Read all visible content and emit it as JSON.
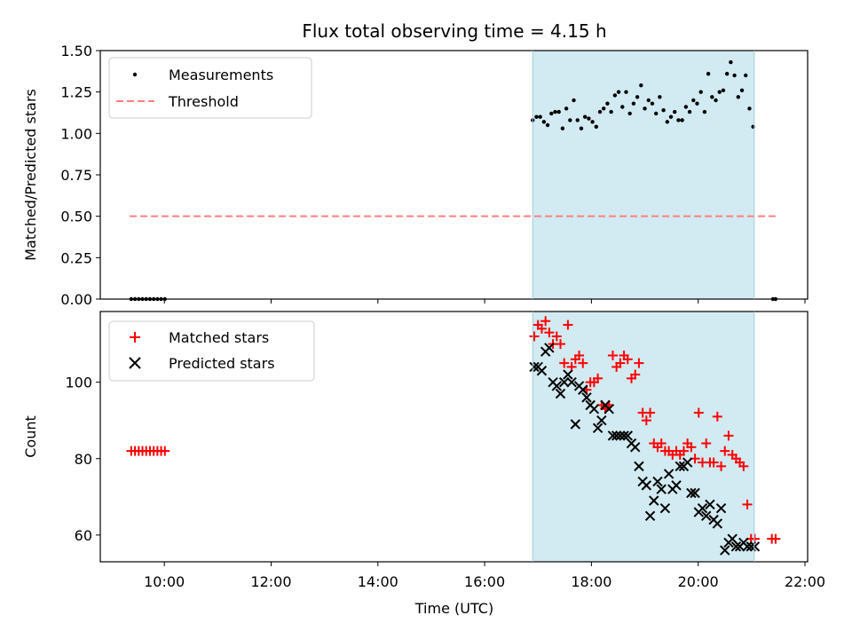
{
  "chart_data": {
    "type": "scatter",
    "title": "Flux total observing time = 4.15 h",
    "xlabel": "Time (UTC)",
    "x_ticks": [
      "10:00",
      "12:00",
      "14:00",
      "16:00",
      "18:00",
      "20:00",
      "22:00"
    ],
    "x_tick_hours": [
      10,
      12,
      14,
      16,
      18,
      20,
      22
    ],
    "xlim_hours": [
      8.8,
      22.05
    ],
    "shaded_interval_hours": [
      16.9,
      21.05
    ],
    "shade_color": "#add8e6",
    "panels": [
      {
        "ylabel": "Matched/Predicted stars",
        "ylim": [
          0,
          1.5
        ],
        "y_ticks": [
          "0.00",
          "0.25",
          "0.50",
          "0.75",
          "1.00",
          "1.25",
          "1.50"
        ],
        "y_tick_values": [
          0,
          0.25,
          0.5,
          0.75,
          1.0,
          1.25,
          1.5
        ],
        "legend": {
          "position": "upper-left",
          "entries": [
            "Measurements",
            "Threshold"
          ]
        },
        "threshold": {
          "name": "Threshold",
          "y": 0.5,
          "x_range_hours": [
            9.35,
            21.45
          ],
          "color": "#ff7f7f"
        },
        "series": [
          {
            "name": "Measurements",
            "marker": "dot",
            "color": "#000000",
            "x": [
              9.38,
              9.45,
              9.52,
              9.59,
              9.66,
              9.73,
              9.8,
              9.87,
              9.94,
              10.01,
              16.9,
              16.97,
              17.04,
              17.11,
              17.18,
              17.25,
              17.32,
              17.39,
              17.46,
              17.53,
              17.6,
              17.67,
              17.74,
              17.81,
              17.88,
              17.95,
              18.02,
              18.09,
              18.16,
              18.23,
              18.3,
              18.37,
              18.44,
              18.51,
              18.58,
              18.65,
              18.72,
              18.79,
              18.86,
              18.93,
              19.0,
              19.07,
              19.14,
              19.21,
              19.28,
              19.35,
              19.42,
              19.49,
              19.56,
              19.63,
              19.7,
              19.77,
              19.84,
              19.91,
              19.98,
              20.05,
              20.12,
              20.19,
              20.26,
              20.33,
              20.4,
              20.47,
              20.54,
              20.61,
              20.68,
              20.75,
              20.82,
              20.89,
              20.96,
              21.03,
              21.4,
              21.45
            ],
            "y": [
              0,
              0,
              0,
              0,
              0,
              0,
              0,
              0,
              0,
              0,
              1.08,
              1.1,
              1.1,
              1.07,
              1.05,
              1.12,
              1.13,
              1.13,
              1.03,
              1.15,
              1.08,
              1.2,
              1.08,
              1.03,
              1.1,
              1.09,
              1.07,
              1.04,
              1.13,
              1.15,
              1.18,
              1.13,
              1.23,
              1.25,
              1.16,
              1.25,
              1.12,
              1.18,
              1.22,
              1.29,
              1.15,
              1.2,
              1.18,
              1.12,
              1.22,
              1.14,
              1.07,
              1.1,
              1.13,
              1.08,
              1.08,
              1.16,
              1.13,
              1.2,
              1.18,
              1.25,
              1.13,
              1.36,
              1.22,
              1.2,
              1.25,
              1.26,
              1.36,
              1.43,
              1.35,
              1.22,
              1.26,
              1.35,
              1.15,
              1.04,
              0,
              0
            ]
          }
        ]
      },
      {
        "ylabel": "Count",
        "ylim": [
          53,
          118.5
        ],
        "y_ticks": [
          "60",
          "80",
          "100"
        ],
        "y_tick_values": [
          60,
          80,
          100
        ],
        "legend": {
          "position": "upper-left",
          "entries": [
            "Matched stars",
            "Predicted stars"
          ]
        },
        "series": [
          {
            "name": "Matched stars",
            "marker": "plus",
            "color": "#ff0000",
            "x": [
              9.38,
              9.45,
              9.52,
              9.59,
              9.66,
              9.73,
              9.8,
              9.87,
              9.94,
              10.01,
              16.93,
              17.0,
              17.07,
              17.14,
              17.21,
              17.28,
              17.35,
              17.42,
              17.49,
              17.56,
              17.63,
              17.7,
              17.77,
              17.84,
              17.91,
              17.98,
              18.05,
              18.12,
              18.19,
              18.26,
              18.33,
              18.4,
              18.47,
              18.54,
              18.61,
              18.68,
              18.75,
              18.82,
              18.89,
              18.96,
              19.03,
              19.1,
              19.17,
              19.24,
              19.31,
              19.38,
              19.45,
              19.52,
              19.59,
              19.66,
              19.73,
              19.8,
              19.87,
              19.94,
              20.01,
              20.08,
              20.15,
              20.22,
              20.29,
              20.36,
              20.43,
              20.5,
              20.57,
              20.64,
              20.71,
              20.78,
              20.85,
              20.92,
              20.99,
              21.06,
              21.38,
              21.45
            ],
            "y": [
              82,
              82,
              82,
              82,
              82,
              82,
              82,
              82,
              82,
              82,
              112,
              115,
              114,
              116,
              113,
              110,
              112,
              110,
              105,
              115,
              104,
              106,
              107,
              105,
              98,
              100,
              100,
              101,
              94,
              93,
              94,
              107,
              104,
              105,
              107,
              106,
              101,
              102,
              105,
              92,
              90,
              92,
              84,
              83,
              84,
              82,
              82,
              81,
              82,
              81,
              82,
              84,
              83,
              80,
              92,
              79,
              84,
              79,
              79,
              91,
              78,
              82,
              86,
              81,
              80,
              79,
              78,
              68,
              59,
              59,
              59,
              59
            ]
          },
          {
            "name": "Predicted stars",
            "marker": "x",
            "color": "#000000",
            "x": [
              16.93,
              17.0,
              17.07,
              17.14,
              17.21,
              17.28,
              17.35,
              17.42,
              17.49,
              17.56,
              17.63,
              17.7,
              17.77,
              17.84,
              17.91,
              17.98,
              18.05,
              18.12,
              18.19,
              18.26,
              18.33,
              18.4,
              18.47,
              18.54,
              18.61,
              18.68,
              18.75,
              18.82,
              18.89,
              18.96,
              19.03,
              19.1,
              19.17,
              19.24,
              19.31,
              19.38,
              19.45,
              19.52,
              19.59,
              19.66,
              19.73,
              19.8,
              19.87,
              19.94,
              20.01,
              20.08,
              20.15,
              20.22,
              20.29,
              20.36,
              20.43,
              20.5,
              20.57,
              20.64,
              20.71,
              20.78,
              20.85,
              20.92,
              20.99,
              21.06
            ],
            "y": [
              104,
              104,
              103,
              108,
              109,
              100,
              99,
              97,
              100,
              102,
              100,
              89,
              99,
              98,
              96,
              94,
              93,
              88,
              90,
              94,
              93,
              86,
              86,
              86,
              86,
              86,
              84,
              83,
              78,
              74,
              73,
              65,
              69,
              74,
              72,
              67,
              76,
              72,
              73,
              78,
              78,
              79,
              71,
              71,
              66,
              67,
              65,
              68,
              64,
              63,
              67,
              56,
              58,
              59,
              57,
              57,
              58,
              57,
              57,
              57
            ]
          }
        ]
      }
    ]
  }
}
